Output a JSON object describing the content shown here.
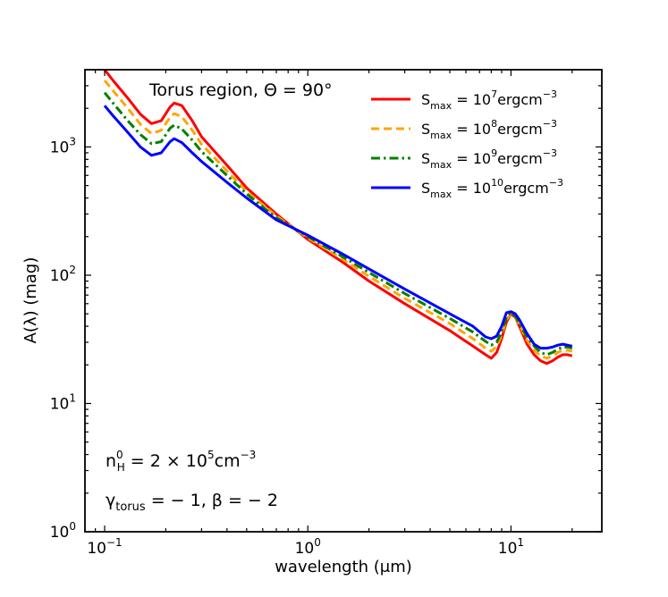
{
  "chart_data": {
    "type": "line",
    "title": "",
    "xlabel": "wavelength (μm)",
    "ylabel": "A(λ) (mag)",
    "xscale": "log",
    "yscale": "log",
    "xlim": [
      0.08,
      28
    ],
    "ylim": [
      1,
      4000
    ],
    "grid": false,
    "legend_position": "top-right",
    "x_ticks": [
      {
        "value": 0.1,
        "base": "10",
        "exp": "−1"
      },
      {
        "value": 1,
        "base": "10",
        "exp": "0"
      },
      {
        "value": 10,
        "base": "10",
        "exp": "1"
      }
    ],
    "y_ticks": [
      {
        "value": 1,
        "base": "10",
        "exp": "0"
      },
      {
        "value": 10,
        "base": "10",
        "exp": "1"
      },
      {
        "value": 100,
        "base": "10",
        "exp": "2"
      },
      {
        "value": 1000,
        "base": "10",
        "exp": "3"
      }
    ],
    "annotations": {
      "region": "Torus region, Θ = 90°",
      "density": {
        "prefix": "n",
        "sup": "0",
        "sub": "H",
        "text": " = 2 × 10",
        "exp": "5",
        "unit": "cm",
        "unit_exp": "−3"
      },
      "params": {
        "prefix": "γ",
        "sub": "torus",
        "text": " = − 1, β = − 2"
      }
    },
    "series": [
      {
        "name": "S_max = 10^7 erg cm^-3",
        "legend": {
          "main": "S",
          "sub": "max",
          "eq": " = 10",
          "exp": "7",
          "unit": "ergcm",
          "unit_exp": "−3"
        },
        "color": "#ff0000",
        "dash": "solid",
        "x": [
          0.1,
          0.11,
          0.13,
          0.15,
          0.17,
          0.19,
          0.21,
          0.22,
          0.24,
          0.27,
          0.3,
          0.4,
          0.5,
          0.7,
          1.0,
          1.5,
          2,
          3,
          5,
          6.5,
          7.5,
          8,
          8.5,
          9,
          9.5,
          10,
          10.5,
          11,
          12,
          13,
          14,
          15,
          16,
          17,
          18,
          19,
          20
        ],
        "y": [
          4000,
          3300,
          2400,
          1800,
          1520,
          1600,
          2050,
          2200,
          2100,
          1600,
          1200,
          720,
          480,
          300,
          190,
          125,
          90,
          60,
          37,
          28,
          24,
          22.5,
          25,
          32,
          43,
          50,
          47,
          40,
          29,
          24,
          21.5,
          20.5,
          21.5,
          23,
          24,
          24,
          23.5
        ]
      },
      {
        "name": "S_max = 10^8 erg cm^-3",
        "legend": {
          "main": "S",
          "sub": "max",
          "eq": " = 10",
          "exp": "8",
          "unit": "ergcm",
          "unit_exp": "−3"
        },
        "color": "#ffa500",
        "dash": "dashed",
        "x": [
          0.1,
          0.11,
          0.13,
          0.15,
          0.17,
          0.19,
          0.21,
          0.22,
          0.24,
          0.27,
          0.3,
          0.4,
          0.5,
          0.7,
          1.0,
          1.5,
          2,
          3,
          5,
          6.5,
          7.5,
          8,
          8.5,
          9,
          9.5,
          10,
          10.5,
          11,
          12,
          13,
          14,
          15,
          16,
          17,
          18,
          19,
          20
        ],
        "y": [
          3300,
          2750,
          2000,
          1500,
          1270,
          1350,
          1700,
          1820,
          1720,
          1350,
          1050,
          650,
          450,
          290,
          195,
          132,
          98,
          66,
          42,
          32,
          27,
          25.5,
          28,
          34,
          45,
          50,
          47,
          41,
          31,
          26,
          23.5,
          22.5,
          23.5,
          25,
          26,
          26,
          25.5
        ]
      },
      {
        "name": "S_max = 10^9 erg cm^-3",
        "legend": {
          "main": "S",
          "sub": "max",
          "eq": " = 10",
          "exp": "9",
          "unit": "ergcm",
          "unit_exp": "−3"
        },
        "color": "#008000",
        "dash": "dashdot",
        "x": [
          0.1,
          0.11,
          0.13,
          0.15,
          0.17,
          0.19,
          0.21,
          0.22,
          0.24,
          0.27,
          0.3,
          0.4,
          0.5,
          0.7,
          1.0,
          1.5,
          2,
          3,
          5,
          6.5,
          7.5,
          8,
          8.5,
          9,
          9.5,
          10,
          10.5,
          11,
          12,
          13,
          14,
          15,
          16,
          17,
          18,
          19,
          20
        ],
        "y": [
          2650,
          2200,
          1600,
          1250,
          1060,
          1100,
          1400,
          1480,
          1380,
          1130,
          920,
          600,
          430,
          280,
          200,
          138,
          105,
          72,
          46,
          36,
          30.5,
          28.5,
          30,
          36,
          47,
          51,
          48,
          42,
          33,
          28,
          25,
          24,
          25,
          26.5,
          27.5,
          27.5,
          27
        ]
      },
      {
        "name": "S_max = 10^10 erg cm^-3",
        "legend": {
          "main": "S",
          "sub": "max",
          "eq": " = 10",
          "exp": "10",
          "unit": "ergcm",
          "unit_exp": "−3"
        },
        "color": "#0000ff",
        "dash": "solid",
        "x": [
          0.1,
          0.11,
          0.13,
          0.15,
          0.17,
          0.19,
          0.21,
          0.22,
          0.24,
          0.27,
          0.3,
          0.4,
          0.5,
          0.7,
          1.0,
          1.5,
          2,
          3,
          5,
          6.5,
          7.5,
          8,
          8.5,
          9,
          9.5,
          10,
          10.5,
          11,
          12,
          13,
          14,
          15,
          16,
          17,
          18,
          19,
          20
        ],
        "y": [
          2100,
          1750,
          1300,
          1000,
          860,
          900,
          1100,
          1160,
          1080,
          900,
          770,
          530,
          400,
          270,
          205,
          145,
          112,
          78,
          50,
          40,
          33,
          32,
          33.5,
          40,
          51,
          52,
          50,
          45,
          35,
          29,
          27,
          27,
          27.5,
          28.5,
          29,
          28.5,
          28
        ]
      }
    ]
  }
}
